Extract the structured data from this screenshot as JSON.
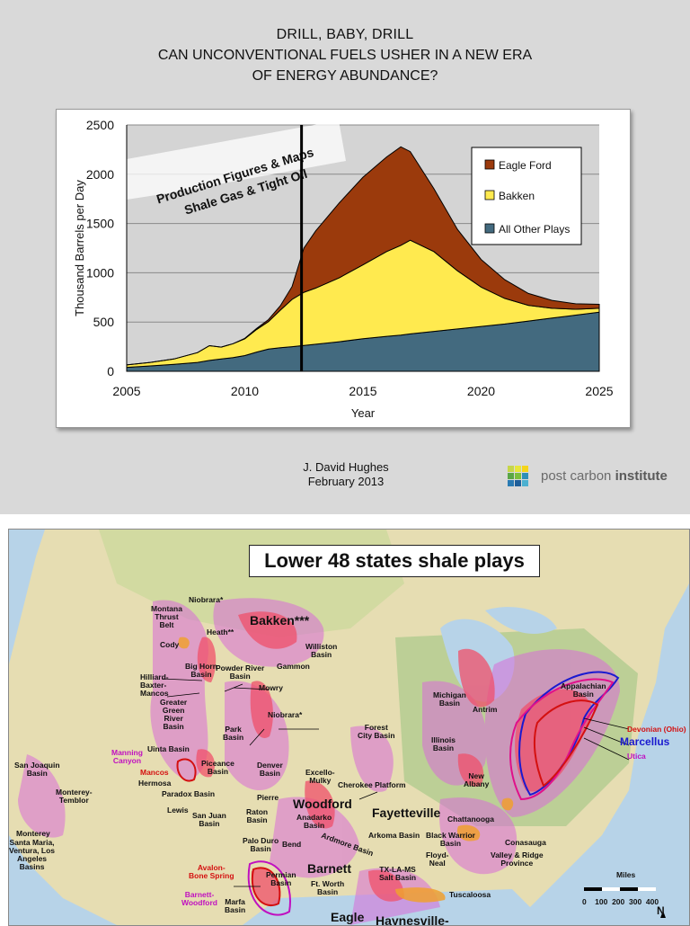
{
  "header": {
    "title": "DRILL, BABY, DRILL",
    "subtitle_line1": "CAN UNCONVENTIONAL FUELS USHER IN A NEW ERA",
    "subtitle_line2": "OF ENERGY ABUNDANCE?"
  },
  "chart_data": {
    "type": "area",
    "stacked": true,
    "xlabel": "Year",
    "ylabel": "Thousand Barrels per Day",
    "xlim": [
      2005,
      2025
    ],
    "ylim": [
      0,
      2500
    ],
    "xticks": [
      2005,
      2010,
      2015,
      2020,
      2025
    ],
    "yticks": [
      0,
      500,
      1000,
      1500,
      2000,
      2500
    ],
    "grid": true,
    "legend_position": "top-right",
    "vertical_marker_x": 2012.4,
    "overlay_banner": [
      "Production Figures & Maps",
      "Shale Gas & Tight Oil"
    ],
    "x": [
      2005,
      2006,
      2007,
      2008,
      2008.5,
      2009,
      2009.5,
      2010,
      2010.5,
      2011,
      2011.5,
      2012,
      2012.5,
      2013,
      2014,
      2015,
      2016,
      2016.6,
      2017,
      2018,
      2019,
      2020,
      2021,
      2022,
      2023,
      2024,
      2025
    ],
    "series": [
      {
        "name": "All Other Plays",
        "color": "#436a7f",
        "values": [
          40,
          55,
          70,
          90,
          110,
          125,
          140,
          160,
          195,
          225,
          240,
          250,
          262,
          275,
          300,
          330,
          355,
          368,
          380,
          405,
          430,
          455,
          480,
          510,
          540,
          570,
          600
        ]
      },
      {
        "name": "Bakken",
        "color": "#ffea4f",
        "values": [
          25,
          35,
          55,
          100,
          150,
          120,
          140,
          170,
          230,
          280,
          380,
          480,
          540,
          570,
          650,
          750,
          860,
          910,
          950,
          810,
          590,
          400,
          260,
          160,
          100,
          60,
          40
        ]
      },
      {
        "name": "Eagle Ford",
        "color": "#9b3a0c",
        "values": [
          0,
          0,
          0,
          0,
          0,
          0,
          0,
          5,
          10,
          20,
          45,
          130,
          450,
          580,
          760,
          890,
          960,
          1000,
          900,
          640,
          420,
          280,
          190,
          120,
          80,
          55,
          40
        ]
      }
    ]
  },
  "credits": {
    "author": "J. David Hughes",
    "date": "February 2013",
    "org_light": "post carbon",
    "org_bold": "institute"
  },
  "map": {
    "title": "Lower 48 states shale plays",
    "labels": {
      "bakken": "Bakken***",
      "niobrara_top": "Niobrara*",
      "montana_thrust": "Montana\nThrust\nBelt",
      "heath": "Heath**",
      "cody": "Cody",
      "williston": "Williston\nBasin",
      "gammon": "Gammon",
      "bighorn": "Big Horn\nBasin",
      "powder_river": "Powder River\nBasin",
      "hilliard": "Hilliard-\nBaxter-\nMancos",
      "greater_green": "Greater\nGreen\nRiver\nBasin",
      "mowry": "Mowry",
      "niobrara_mid": "Niobrara*",
      "park": "Park\nBasin",
      "manning": "Manning\nCanyon",
      "uinta": "Uinta Basin",
      "mancos": "Mancos",
      "piceance": "Piceance\nBasin",
      "denver": "Denver\nBasin",
      "hermosa": "Hermosa",
      "paradox": "Paradox Basin",
      "san_joaquin": "San Joaquin\nBasin",
      "monterey_temblor": "Monterey-\nTemblor",
      "lewis": "Lewis",
      "san_juan": "San Juan\nBasin",
      "pierre": "Pierre",
      "raton": "Raton\nBasin",
      "monterey": "Monterey",
      "santa_maria": "Santa Maria,\nVentura, Los\nAngeles\nBasins",
      "palo_duro": "Palo Duro\nBasin",
      "bend": "Bend",
      "anadarko": "Anadarko\nBasin",
      "ardmore": "Ardmore Basin",
      "woodford": "Woodford",
      "excello": "Excello-\nMulky",
      "cherokee": "Cherokee Platform",
      "forest_city": "Forest\nCity Basin",
      "fayetteville": "Fayetteville",
      "arkoma": "Arkoma Basin",
      "avalon": "Avalon-\nBone Spring",
      "permian": "Permian\nBasin",
      "barnett": "Barnett",
      "ft_worth": "Ft. Worth\nBasin",
      "barnett_woodford": "Barnett-\nWoodford",
      "marfa": "Marfa\nBasin",
      "eagle": "Eagle",
      "haynesville": "Haynesville-",
      "michigan": "Michigan\nBasin",
      "antrim": "Antrim",
      "illinois": "Illinois\nBasin",
      "new_albany": "New\nAlbany",
      "chattanooga": "Chattanooga",
      "black_warrior": "Black Warrior\nBasin",
      "conasauga": "Conasauga",
      "valley_ridge": "Valley & Ridge\nProvince",
      "floyd_neal": "Floyd-\nNeal",
      "txlams": "TX-LA-MS\nSalt Basin",
      "tuscaloosa": "Tuscaloosa",
      "appalachian": "Appalachian\nBasin",
      "devonian": "Devonian (Ohio)",
      "marcellus": "Marcellus",
      "utica": "Utica",
      "miles": "Miles",
      "scale_ticks": "0    100  200  300  400",
      "north": "N"
    }
  }
}
